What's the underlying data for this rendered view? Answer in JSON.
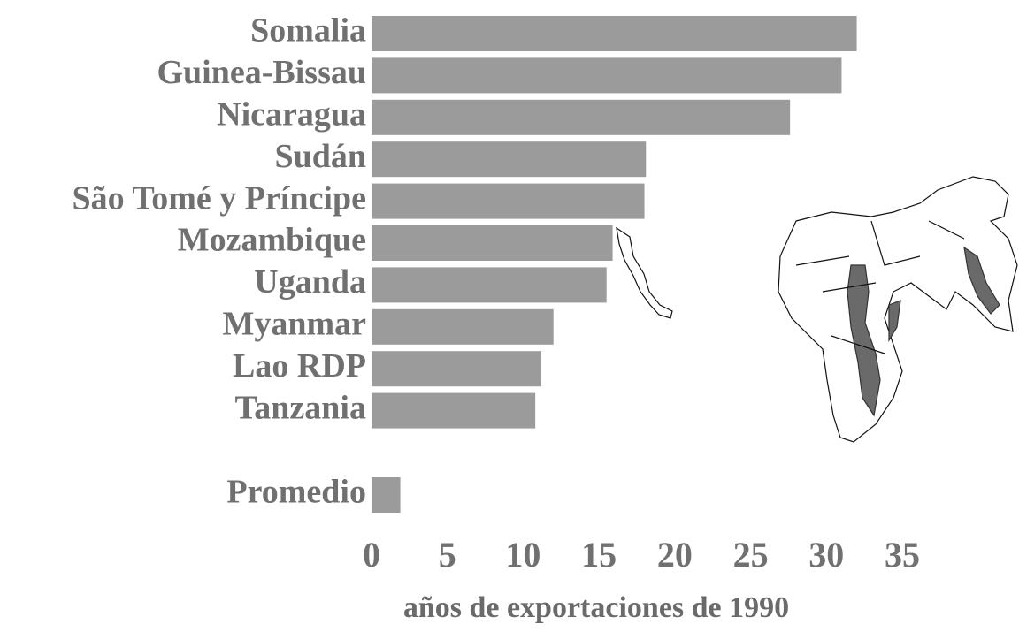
{
  "chart_data": {
    "type": "bar",
    "x_label": "años de exportaciones de 1990",
    "categories": [
      "Somalia",
      "Guinea-Bissau",
      "Nicaragua",
      "Sudán",
      "São Tomé y Príncipe",
      "Mozambique",
      "Uganda",
      "Myanmar",
      "Lao RDP",
      "Tanzania",
      "Promedio"
    ],
    "values": [
      32.0,
      31.0,
      27.6,
      18.1,
      18.0,
      15.9,
      15.5,
      12.0,
      11.2,
      10.8,
      1.9
    ],
    "color": "#9b9b9b",
    "xlim": [
      0,
      35
    ],
    "xticks": [
      0,
      5,
      10,
      15,
      20,
      25,
      30,
      35
    ],
    "grid": false
  }
}
